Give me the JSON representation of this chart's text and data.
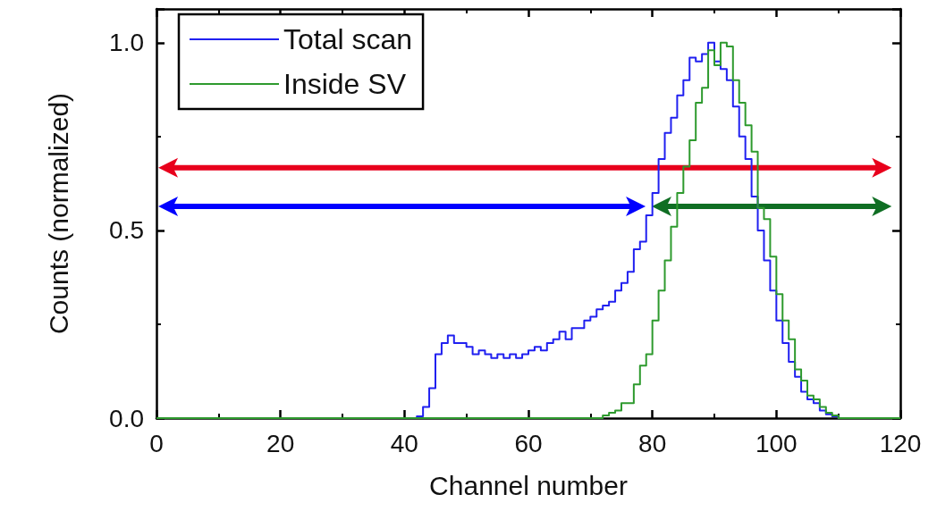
{
  "chart_data": {
    "type": "step",
    "xlabel": "Channel number",
    "ylabel": "Counts (normalized)",
    "xlim": [
      0,
      120
    ],
    "xticks": [
      0,
      20,
      40,
      60,
      80,
      100,
      120
    ],
    "ylim": [
      0,
      1.09
    ],
    "yticks": [
      {
        "value": 0,
        "label": "0.0"
      },
      {
        "value": 0.5,
        "label": "0.5"
      },
      {
        "value": 1,
        "label": "1.0"
      }
    ],
    "legend": "top left",
    "grid": false,
    "marker": "none",
    "line_style": "solid",
    "series": [
      {
        "name": "Total scan",
        "color": "#2020f0",
        "x": [
          0,
          42,
          43,
          44,
          45,
          46,
          47,
          48,
          49,
          50,
          51,
          52,
          53,
          54,
          55,
          56,
          57,
          58,
          59,
          60,
          61,
          62,
          63,
          64,
          65,
          66,
          67,
          68,
          69,
          70,
          71,
          72,
          73,
          74,
          75,
          76,
          77,
          78,
          79,
          80,
          81,
          82,
          83,
          84,
          85,
          86,
          87,
          88,
          89,
          90,
          91,
          92,
          93,
          94,
          95,
          96,
          97,
          98,
          99,
          100,
          101,
          102,
          103,
          104,
          105,
          106,
          107,
          108,
          109,
          110,
          120
        ],
        "values": [
          0,
          0.005,
          0.03,
          0.08,
          0.17,
          0.2,
          0.22,
          0.2,
          0.2,
          0.19,
          0.17,
          0.18,
          0.17,
          0.16,
          0.17,
          0.16,
          0.17,
          0.16,
          0.17,
          0.18,
          0.19,
          0.18,
          0.2,
          0.21,
          0.23,
          0.21,
          0.24,
          0.24,
          0.26,
          0.27,
          0.29,
          0.3,
          0.31,
          0.34,
          0.36,
          0.39,
          0.45,
          0.47,
          0.54,
          0.6,
          0.69,
          0.76,
          0.8,
          0.86,
          0.9,
          0.96,
          0.95,
          0.97,
          1.0,
          0.95,
          0.93,
          0.9,
          0.83,
          0.75,
          0.69,
          0.59,
          0.5,
          0.42,
          0.34,
          0.26,
          0.2,
          0.15,
          0.11,
          0.07,
          0.05,
          0.04,
          0.02,
          0.01,
          0.005,
          0,
          0
        ]
      },
      {
        "name": "Inside SV",
        "color": "#2e9a2e",
        "x": [
          0,
          72,
          73,
          74,
          75,
          76,
          77,
          78,
          79,
          80,
          81,
          82,
          83,
          84,
          85,
          86,
          87,
          88,
          89,
          90,
          91,
          92,
          93,
          94,
          95,
          96,
          97,
          98,
          99,
          100,
          101,
          102,
          103,
          104,
          105,
          106,
          107,
          108,
          109,
          110,
          120
        ],
        "values": [
          0,
          0.007,
          0.014,
          0.02,
          0.04,
          0.04,
          0.09,
          0.14,
          0.17,
          0.26,
          0.34,
          0.42,
          0.51,
          0.6,
          0.67,
          0.74,
          0.84,
          0.88,
          0.98,
          0.94,
          1.0,
          0.99,
          0.9,
          0.84,
          0.78,
          0.71,
          0.56,
          0.53,
          0.43,
          0.33,
          0.26,
          0.21,
          0.13,
          0.1,
          0.06,
          0.05,
          0.03,
          0.014,
          0.007,
          0,
          0
        ]
      }
    ]
  }
}
